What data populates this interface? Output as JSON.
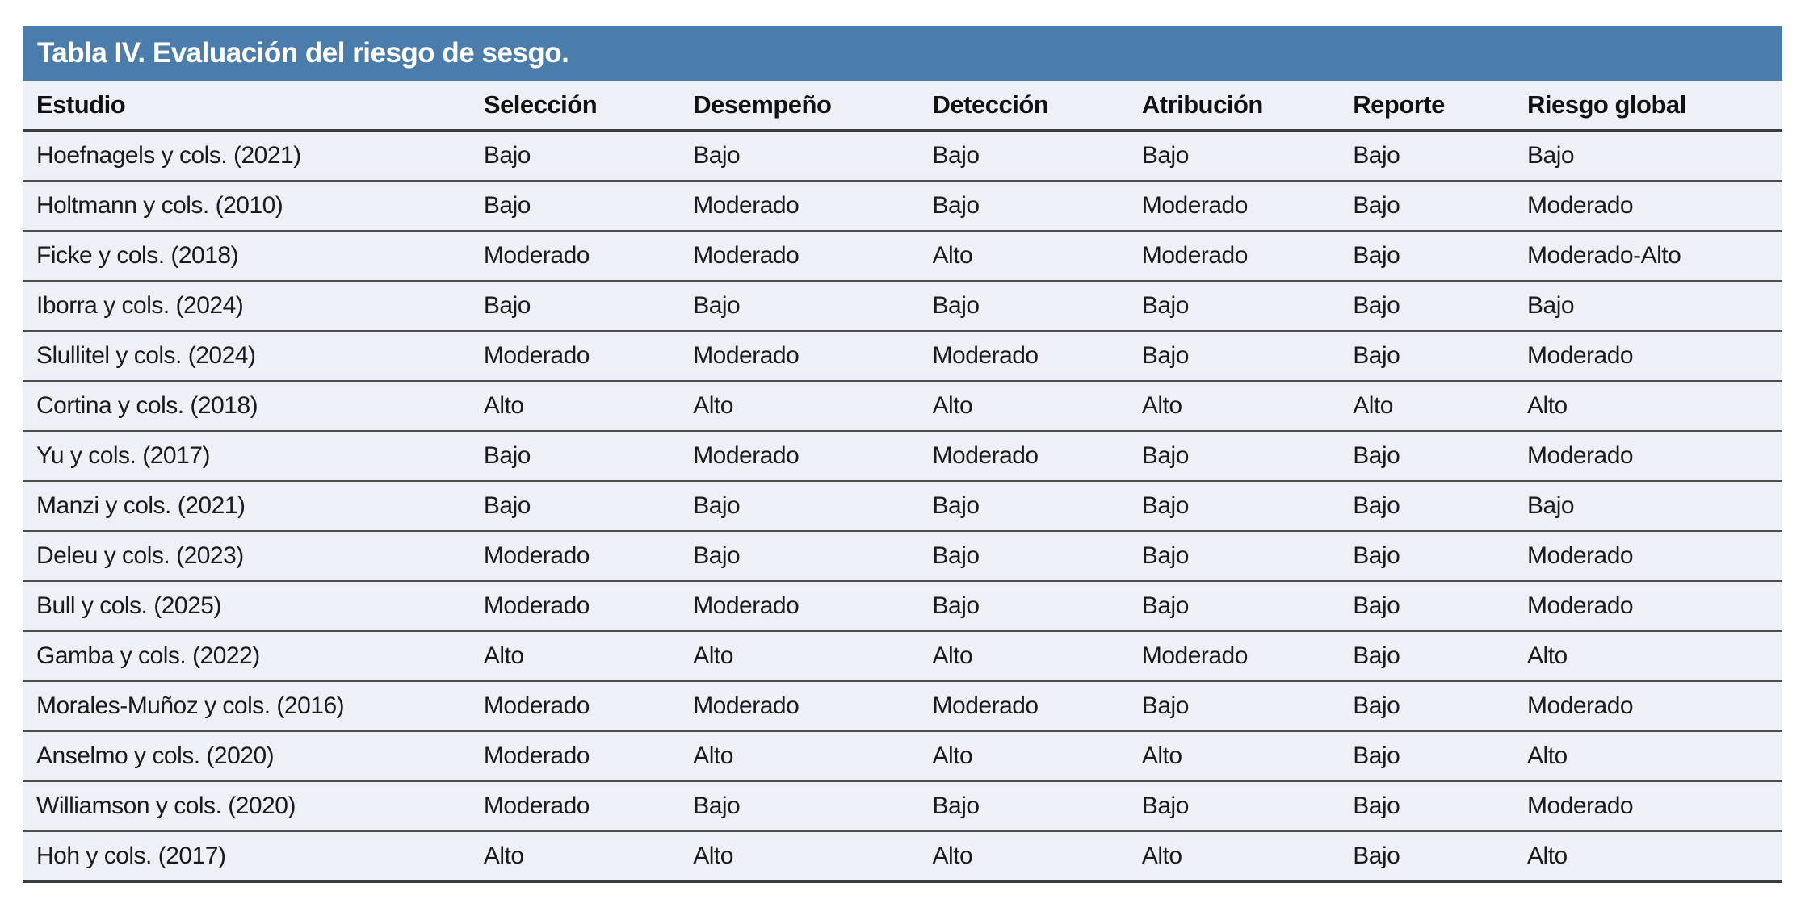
{
  "table": {
    "title": "Tabla IV. Evaluación del riesgo de sesgo.",
    "columns": [
      "Estudio",
      "Selección",
      "Desempeño",
      "Detección",
      "Atribución",
      "Reporte",
      "Riesgo global"
    ],
    "rows": [
      [
        "Hoefnagels y cols. (2021)",
        "Bajo",
        "Bajo",
        "Bajo",
        "Bajo",
        "Bajo",
        "Bajo"
      ],
      [
        "Holtmann y cols. (2010)",
        "Bajo",
        "Moderado",
        "Bajo",
        "Moderado",
        "Bajo",
        "Moderado"
      ],
      [
        "Ficke y cols. (2018)",
        "Moderado",
        "Moderado",
        "Alto",
        "Moderado",
        "Bajo",
        "Moderado-Alto"
      ],
      [
        "Iborra y cols. (2024)",
        "Bajo",
        "Bajo",
        "Bajo",
        "Bajo",
        "Bajo",
        "Bajo"
      ],
      [
        "Slullitel y cols. (2024)",
        "Moderado",
        "Moderado",
        "Moderado",
        "Bajo",
        "Bajo",
        "Moderado"
      ],
      [
        "Cortina y cols. (2018)",
        "Alto",
        "Alto",
        "Alto",
        "Alto",
        "Alto",
        "Alto"
      ],
      [
        "Yu y cols. (2017)",
        "Bajo",
        "Moderado",
        "Moderado",
        "Bajo",
        "Bajo",
        "Moderado"
      ],
      [
        "Manzi y cols. (2021)",
        "Bajo",
        "Bajo",
        "Bajo",
        "Bajo",
        "Bajo",
        "Bajo"
      ],
      [
        "Deleu y cols. (2023)",
        "Moderado",
        "Bajo",
        "Bajo",
        "Bajo",
        "Bajo",
        "Moderado"
      ],
      [
        "Bull y cols. (2025)",
        "Moderado",
        "Moderado",
        "Bajo",
        "Bajo",
        "Bajo",
        "Moderado"
      ],
      [
        "Gamba y cols. (2022)",
        "Alto",
        "Alto",
        "Alto",
        "Moderado",
        "Bajo",
        "Alto"
      ],
      [
        "Morales-Muñoz y cols. (2016)",
        "Moderado",
        "Moderado",
        "Moderado",
        "Bajo",
        "Bajo",
        "Moderado"
      ],
      [
        "Anselmo y cols. (2020)",
        "Moderado",
        "Alto",
        "Alto",
        "Alto",
        "Bajo",
        "Alto"
      ],
      [
        "Williamson y cols. (2020)",
        "Moderado",
        "Bajo",
        "Bajo",
        "Bajo",
        "Bajo",
        "Moderado"
      ],
      [
        "Hoh y cols. (2017)",
        "Alto",
        "Alto",
        "Alto",
        "Alto",
        "Bajo",
        "Alto"
      ]
    ],
    "column_widths_pct": [
      26.2,
      11.9,
      13.6,
      11.9,
      12.0,
      9.9,
      14.5
    ],
    "colors": {
      "title_bar": "#4a7dab",
      "title_text": "#ffffff",
      "row_background": "#edf1f7",
      "divider": "#4e4e4e",
      "body_text": "#1a1a1a"
    }
  }
}
